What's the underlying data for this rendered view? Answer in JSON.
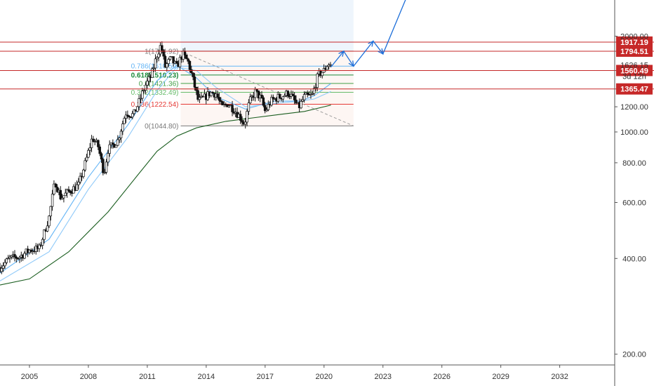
{
  "chart_data": {
    "type": "candlestick",
    "x_axis": {
      "min": 2003.5,
      "max": 2034.8,
      "tick_labels": [
        "2005",
        "2008",
        "2011",
        "2014",
        "2017",
        "2020",
        "2023",
        "2026",
        "2029",
        "2032"
      ],
      "tick_values": [
        2005,
        2008,
        2011,
        2014,
        2017,
        2020,
        2023,
        2026,
        2029,
        2032
      ]
    },
    "y_axis": {
      "scale": "log",
      "min": 185,
      "max": 2600,
      "tick_labels": [
        "200.00",
        "400.00",
        "600.00",
        "800.00",
        "1000.00",
        "1200.00",
        "2000.00"
      ],
      "tick_values": [
        200,
        400,
        600,
        800,
        1000,
        1200,
        2000
      ]
    },
    "current_price": {
      "label": "1626.15",
      "value": 1626.15,
      "countdown": "3d 12h"
    },
    "horizontal_levels": [
      {
        "label": "1917.19",
        "value": 1917.19,
        "color": "#c62828"
      },
      {
        "label": "1794.51",
        "value": 1794.51,
        "color": "#c62828"
      },
      {
        "label": "1560.49",
        "value": 1560.49,
        "color": "#c62828"
      },
      {
        "label": "1365.47",
        "value": 1365.47,
        "color": "#c62828"
      }
    ],
    "fib_levels": [
      {
        "label": "1(1794.92)",
        "value": 1794.92,
        "color": "#787878"
      },
      {
        "label": "0.786(1610.50)",
        "value": 1610.5,
        "color": "#64b5f6"
      },
      {
        "label": "0.618(1510.23)",
        "value": 1510.23,
        "color": "#1b8a3a"
      },
      {
        "label": "0.5(1421.36)",
        "value": 1421.36,
        "color": "#43a047"
      },
      {
        "label": "0.382(1332.49)",
        "value": 1332.49,
        "color": "#66bb6a"
      },
      {
        "label": "0.236(1222.54)",
        "value": 1222.54,
        "color": "#e53935"
      },
      {
        "label": "0(1044.80)",
        "value": 1044.8,
        "color": "#787878"
      }
    ],
    "fib_range": {
      "x_start": 2012.7,
      "x_end": 2021.5
    },
    "fib_diagonal": {
      "x0": 2012.7,
      "y0": 1794.92,
      "x1": 2021.5,
      "y1": 1044.8
    },
    "shaded_zone": {
      "x_start": 2012.7,
      "x_end": 2021.5
    },
    "price_series": [
      {
        "t": 2003.5,
        "c": 375
      },
      {
        "t": 2004.0,
        "c": 400
      },
      {
        "t": 2004.5,
        "c": 405
      },
      {
        "t": 2005.0,
        "c": 425
      },
      {
        "t": 2005.5,
        "c": 430
      },
      {
        "t": 2006.0,
        "c": 540
      },
      {
        "t": 2006.3,
        "c": 700
      },
      {
        "t": 2006.6,
        "c": 620
      },
      {
        "t": 2007.0,
        "c": 650
      },
      {
        "t": 2007.5,
        "c": 680
      },
      {
        "t": 2007.9,
        "c": 820
      },
      {
        "t": 2008.2,
        "c": 960
      },
      {
        "t": 2008.5,
        "c": 900
      },
      {
        "t": 2008.8,
        "c": 740
      },
      {
        "t": 2009.0,
        "c": 880
      },
      {
        "t": 2009.5,
        "c": 940
      },
      {
        "t": 2009.9,
        "c": 1150
      },
      {
        "t": 2010.3,
        "c": 1130
      },
      {
        "t": 2010.6,
        "c": 1250
      },
      {
        "t": 2010.9,
        "c": 1400
      },
      {
        "t": 2011.2,
        "c": 1500
      },
      {
        "t": 2011.5,
        "c": 1750
      },
      {
        "t": 2011.7,
        "c": 1880
      },
      {
        "t": 2011.9,
        "c": 1600
      },
      {
        "t": 2012.2,
        "c": 1700
      },
      {
        "t": 2012.5,
        "c": 1600
      },
      {
        "t": 2012.8,
        "c": 1760
      },
      {
        "t": 2013.1,
        "c": 1650
      },
      {
        "t": 2013.4,
        "c": 1400
      },
      {
        "t": 2013.6,
        "c": 1250
      },
      {
        "t": 2013.9,
        "c": 1280
      },
      {
        "t": 2014.2,
        "c": 1330
      },
      {
        "t": 2014.5,
        "c": 1320
      },
      {
        "t": 2014.8,
        "c": 1190
      },
      {
        "t": 2015.1,
        "c": 1230
      },
      {
        "t": 2015.4,
        "c": 1180
      },
      {
        "t": 2015.7,
        "c": 1120
      },
      {
        "t": 2015.95,
        "c": 1060
      },
      {
        "t": 2016.2,
        "c": 1240
      },
      {
        "t": 2016.5,
        "c": 1340
      },
      {
        "t": 2016.8,
        "c": 1270
      },
      {
        "t": 2017.0,
        "c": 1160
      },
      {
        "t": 2017.3,
        "c": 1250
      },
      {
        "t": 2017.6,
        "c": 1280
      },
      {
        "t": 2017.9,
        "c": 1300
      },
      {
        "t": 2018.2,
        "c": 1330
      },
      {
        "t": 2018.5,
        "c": 1250
      },
      {
        "t": 2018.7,
        "c": 1190
      },
      {
        "t": 2019.0,
        "c": 1290
      },
      {
        "t": 2019.4,
        "c": 1300
      },
      {
        "t": 2019.7,
        "c": 1510
      },
      {
        "t": 2020.0,
        "c": 1560
      },
      {
        "t": 2020.2,
        "c": 1640
      },
      {
        "t": 2020.35,
        "c": 1626.15
      }
    ],
    "moving_averages": [
      {
        "color": "#64b5f6",
        "points": [
          [
            2003.5,
            360
          ],
          [
            2006.0,
            460
          ],
          [
            2008.0,
            720
          ],
          [
            2010.0,
            1050
          ],
          [
            2011.5,
            1450
          ],
          [
            2012.5,
            1620
          ],
          [
            2013.5,
            1480
          ],
          [
            2014.5,
            1290
          ],
          [
            2016.0,
            1180
          ],
          [
            2017.5,
            1250
          ],
          [
            2018.8,
            1250
          ],
          [
            2019.5,
            1300
          ],
          [
            2020.35,
            1420
          ]
        ]
      },
      {
        "color": "#90caf9",
        "points": [
          [
            2003.5,
            340
          ],
          [
            2006.0,
            420
          ],
          [
            2008.0,
            660
          ],
          [
            2010.0,
            960
          ],
          [
            2011.5,
            1350
          ],
          [
            2012.5,
            1600
          ],
          [
            2013.5,
            1560
          ],
          [
            2014.5,
            1380
          ],
          [
            2016.0,
            1200
          ],
          [
            2017.5,
            1230
          ],
          [
            2018.8,
            1250
          ],
          [
            2019.5,
            1270
          ],
          [
            2020.35,
            1340
          ]
        ]
      },
      {
        "color": "#1b5e20",
        "points": [
          [
            2003.5,
            330
          ],
          [
            2005.0,
            345
          ],
          [
            2007.0,
            420
          ],
          [
            2009.0,
            560
          ],
          [
            2010.5,
            730
          ],
          [
            2011.5,
            870
          ],
          [
            2012.5,
            970
          ],
          [
            2013.5,
            1030
          ],
          [
            2015.0,
            1080
          ],
          [
            2016.5,
            1110
          ],
          [
            2018.0,
            1140
          ],
          [
            2019.0,
            1160
          ],
          [
            2020.0,
            1200
          ],
          [
            2020.35,
            1215
          ]
        ]
      }
    ],
    "projection_path": [
      [
        2020.35,
        1600
      ],
      [
        2021.0,
        1794.51
      ],
      [
        2021.5,
        1610
      ],
      [
        2022.5,
        1930
      ],
      [
        2023.0,
        1760
      ],
      [
        2024.2,
        2650
      ]
    ],
    "diagonal_dashed": true,
    "grid": false,
    "legend": "none"
  }
}
